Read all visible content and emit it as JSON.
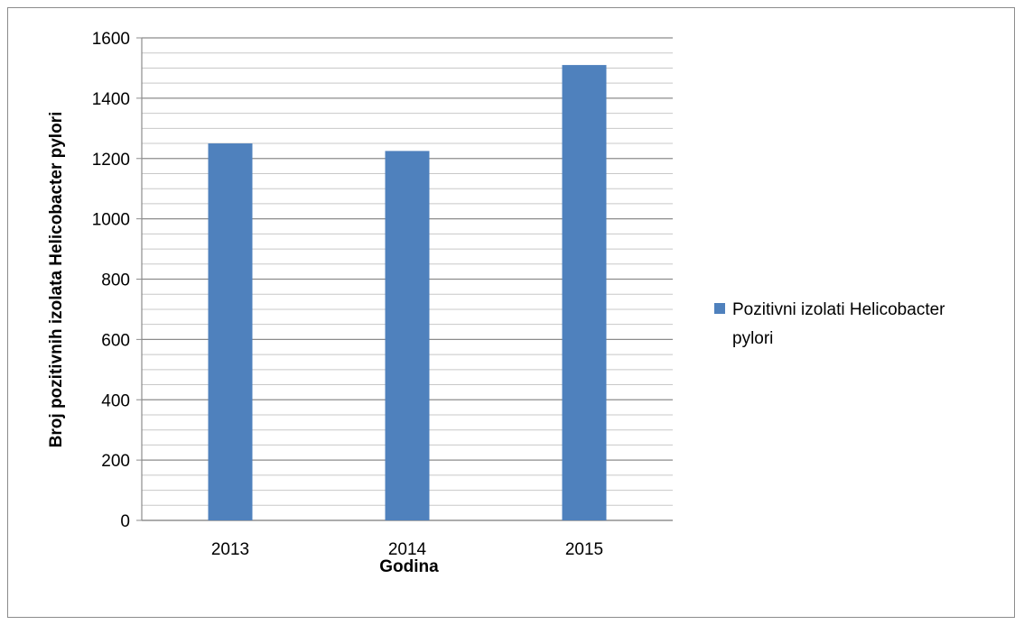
{
  "chart_data": {
    "type": "bar",
    "categories": [
      "2013",
      "2014",
      "2015"
    ],
    "series": [
      {
        "name": "Pozitivni izolati Helicobacter pylori",
        "values": [
          1250,
          1225,
          1510
        ],
        "color": "#4f81bd"
      }
    ],
    "xlabel": "Godina",
    "ylabel": "Broj pozitivnih izolata Helicobacter pylori",
    "ylim": [
      0,
      1600
    ],
    "yticks": [
      "0",
      "200",
      "400",
      "600",
      "800",
      "1000",
      "1200",
      "1400",
      "1600"
    ],
    "grid": true,
    "legend": {
      "position": "right",
      "lines": [
        "Pozitivni izolati Helicobacter",
        "pylori"
      ]
    }
  }
}
